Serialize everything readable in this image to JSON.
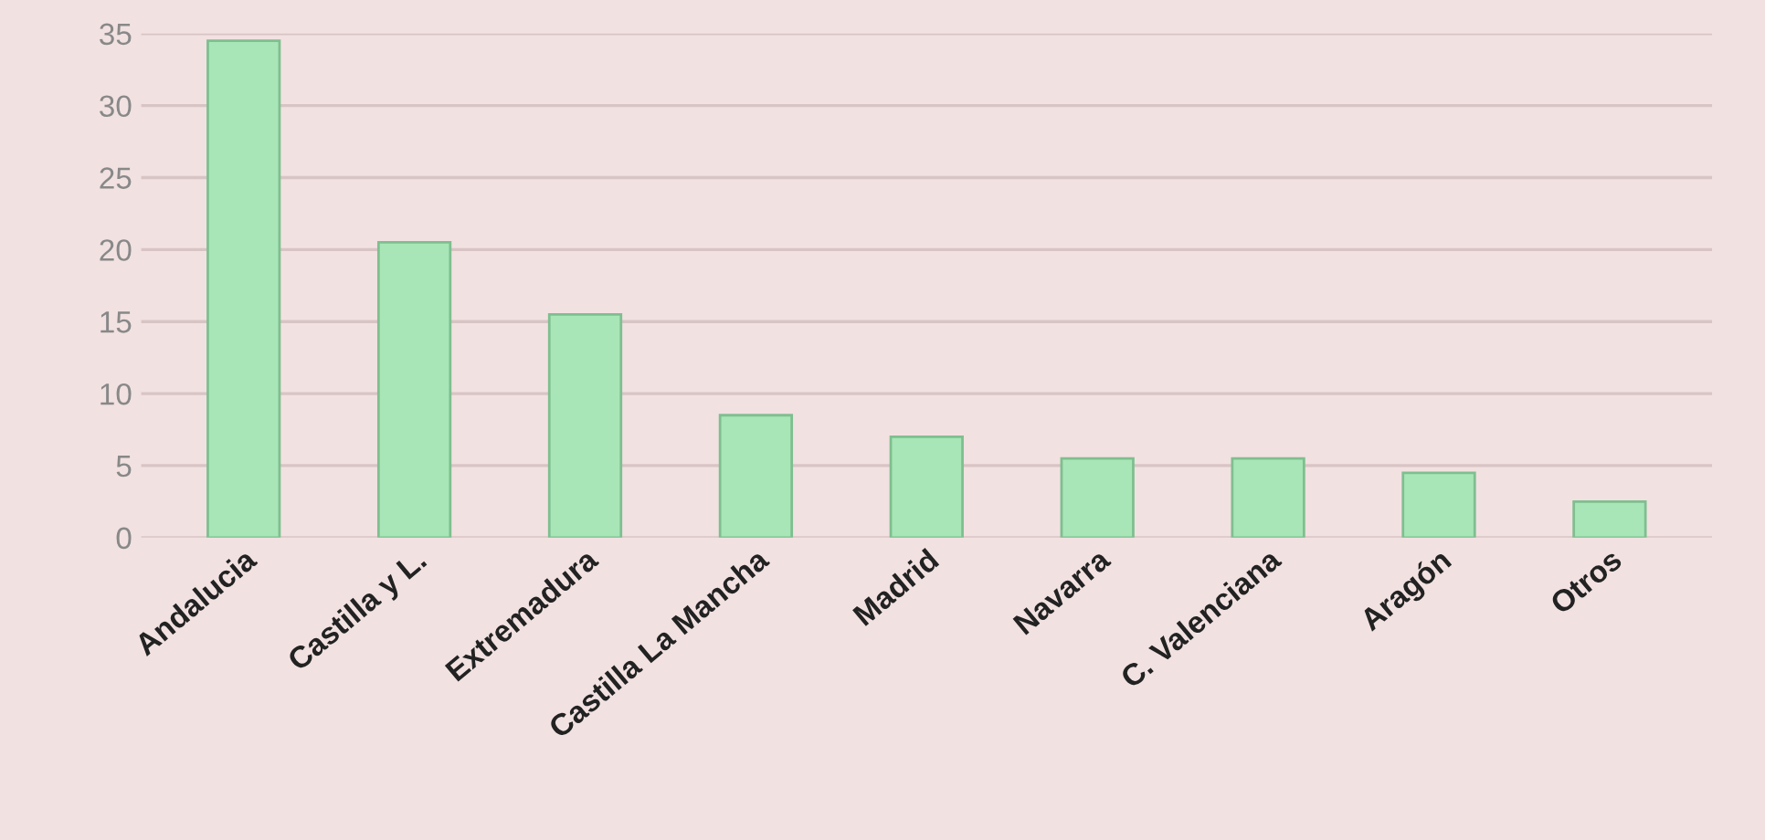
{
  "chart_data": {
    "type": "bar",
    "categories": [
      "Andalucia",
      "Castilla y L.",
      "Extremadura",
      "Castilla La Mancha",
      "Madrid",
      "Navarra",
      "C. Valenciana",
      "Aragón",
      "Otros"
    ],
    "values": [
      34.5,
      20.5,
      15.5,
      8.5,
      7,
      5.5,
      5.5,
      4.5,
      2.5
    ],
    "color": "#a8e6b8",
    "ylim": [
      0,
      35
    ],
    "yticks": [
      0,
      5,
      10,
      15,
      20,
      25,
      30,
      35
    ],
    "grid": "y"
  }
}
